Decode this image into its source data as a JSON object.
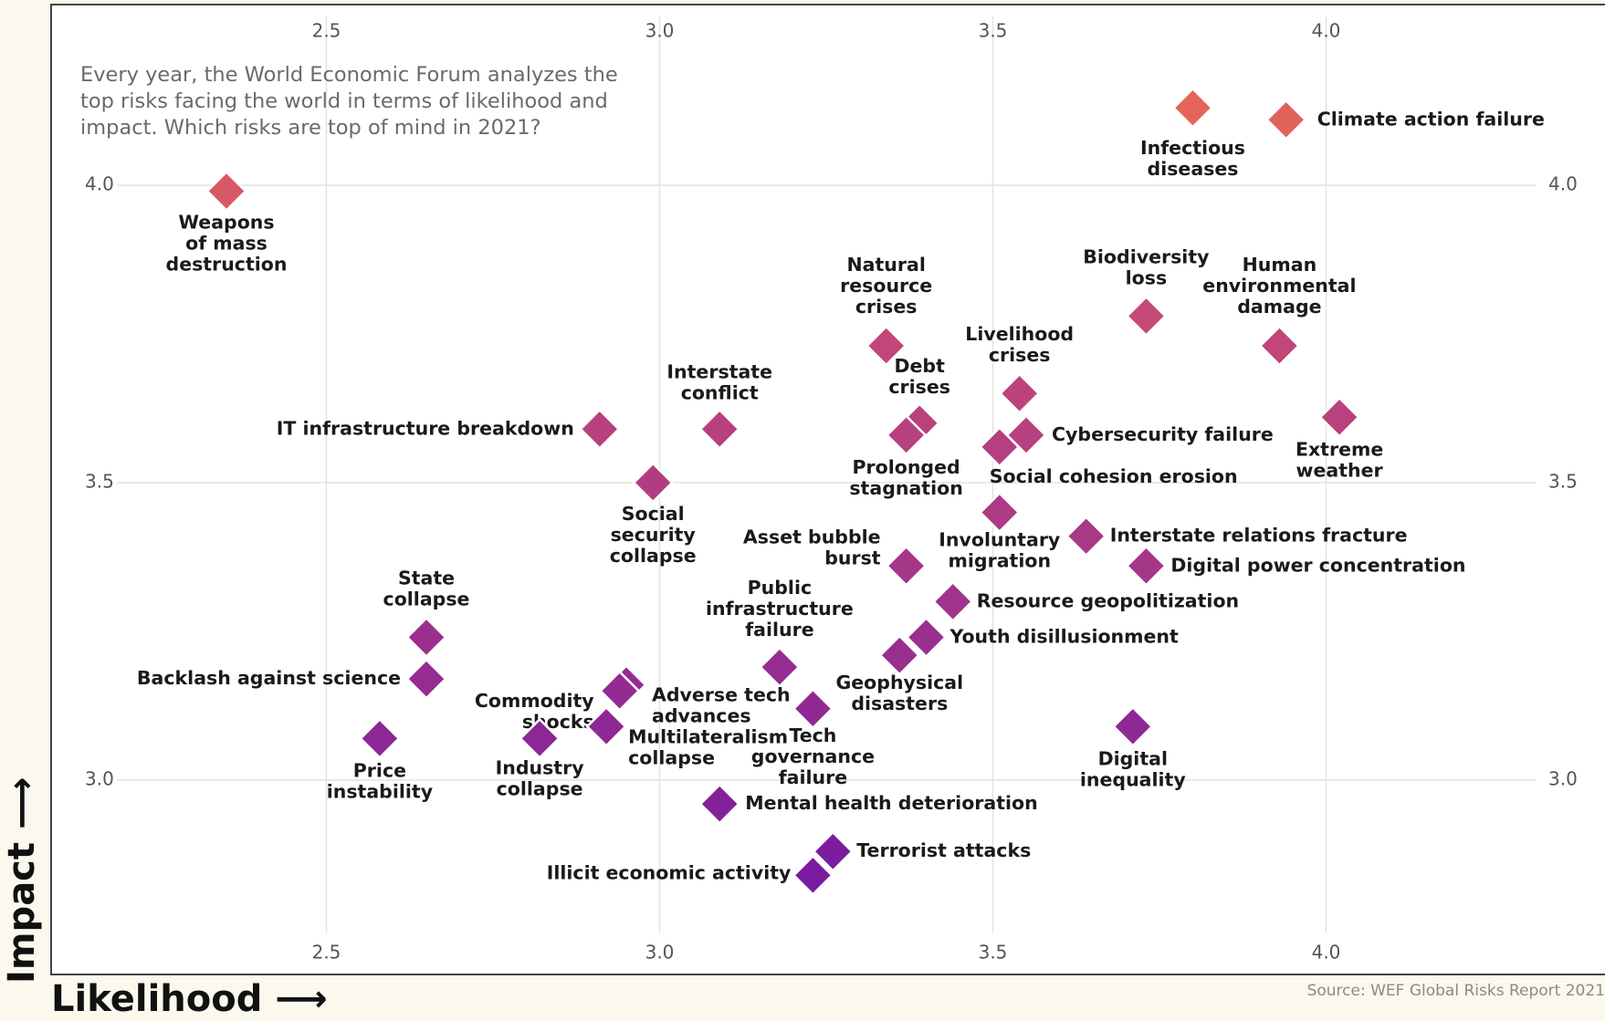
{
  "intro_text": "Every year, the World Economic Forum analyzes the top risks facing the world in terms of likelihood and impact. Which risks are top of mind in 2021?",
  "source": "Source: WEF Global Risks Report 2021",
  "colors": {
    "low_impact": "#7b1ba0",
    "mid_impact": "#b3407d",
    "high_impact": "#e0605a",
    "background": "#fbf8ee",
    "grid": "#e2e2e2"
  },
  "chart_data": {
    "type": "scatter",
    "xlabel": "Likelihood",
    "ylabel": "Impact",
    "xlim": [
      2.09,
      4.42
    ],
    "ylim": [
      2.69,
      4.3
    ],
    "x_ticks": [
      "2.5",
      "3.0",
      "3.5",
      "4.0"
    ],
    "y_ticks": [
      "3.0",
      "3.5",
      "4.0"
    ],
    "grid": true,
    "points": [
      {
        "label": "Climate action failure",
        "x": 3.94,
        "y": 4.11
      },
      {
        "label": "Infectious diseases",
        "x": 3.8,
        "y": 4.13
      },
      {
        "label": "Weapons of mass destruction",
        "x": 2.35,
        "y": 3.99
      },
      {
        "label": "Biodiversity loss",
        "x": 3.73,
        "y": 3.78
      },
      {
        "label": "Human environmental damage",
        "x": 3.93,
        "y": 3.73
      },
      {
        "label": "Natural resource crises",
        "x": 3.34,
        "y": 3.73
      },
      {
        "label": "Livelihood crises",
        "x": 3.54,
        "y": 3.65
      },
      {
        "label": "Extreme weather",
        "x": 4.02,
        "y": 3.61
      },
      {
        "label": "Debt crises",
        "x": 3.39,
        "y": 3.6
      },
      {
        "label": "Cybersecurity failure",
        "x": 3.55,
        "y": 3.58
      },
      {
        "label": "IT infrastructure breakdown",
        "x": 2.91,
        "y": 3.59
      },
      {
        "label": "Interstate conflict",
        "x": 3.09,
        "y": 3.59
      },
      {
        "label": "Prolonged stagnation",
        "x": 3.37,
        "y": 3.58
      },
      {
        "label": "Social cohesion erosion",
        "x": 3.51,
        "y": 3.56
      },
      {
        "label": "Social security collapse",
        "x": 2.99,
        "y": 3.5
      },
      {
        "label": "Involuntary migration",
        "x": 3.51,
        "y": 3.45
      },
      {
        "label": "Interstate relations fracture",
        "x": 3.64,
        "y": 3.41
      },
      {
        "label": "Digital power concentration",
        "x": 3.73,
        "y": 3.36
      },
      {
        "label": "Asset bubble burst",
        "x": 3.37,
        "y": 3.36
      },
      {
        "label": "Resource geopolitization",
        "x": 3.44,
        "y": 3.3
      },
      {
        "label": "Youth disillusionment",
        "x": 3.4,
        "y": 3.24
      },
      {
        "label": "Geophysical disasters",
        "x": 3.36,
        "y": 3.21
      },
      {
        "label": "State collapse",
        "x": 2.65,
        "y": 3.24
      },
      {
        "label": "Public infrastructure failure",
        "x": 3.18,
        "y": 3.19
      },
      {
        "label": "Backlash against science",
        "x": 2.65,
        "y": 3.17
      },
      {
        "label": "Adverse tech advances",
        "x": 2.95,
        "y": 3.16
      },
      {
        "label": "Commodity shocks",
        "x": 2.94,
        "y": 3.15
      },
      {
        "label": "Tech governance failure",
        "x": 3.23,
        "y": 3.12
      },
      {
        "label": "Digital inequality",
        "x": 3.71,
        "y": 3.09
      },
      {
        "label": "Multilateralism collapse",
        "x": 2.92,
        "y": 3.09
      },
      {
        "label": "Price instability",
        "x": 2.58,
        "y": 3.07
      },
      {
        "label": "Industry collapse",
        "x": 2.82,
        "y": 3.07
      },
      {
        "label": "Mental health deterioration",
        "x": 3.09,
        "y": 2.96
      },
      {
        "label": "Terrorist attacks",
        "x": 3.26,
        "y": 2.88
      },
      {
        "label": "Illicit economic activity",
        "x": 3.23,
        "y": 2.84
      }
    ]
  }
}
